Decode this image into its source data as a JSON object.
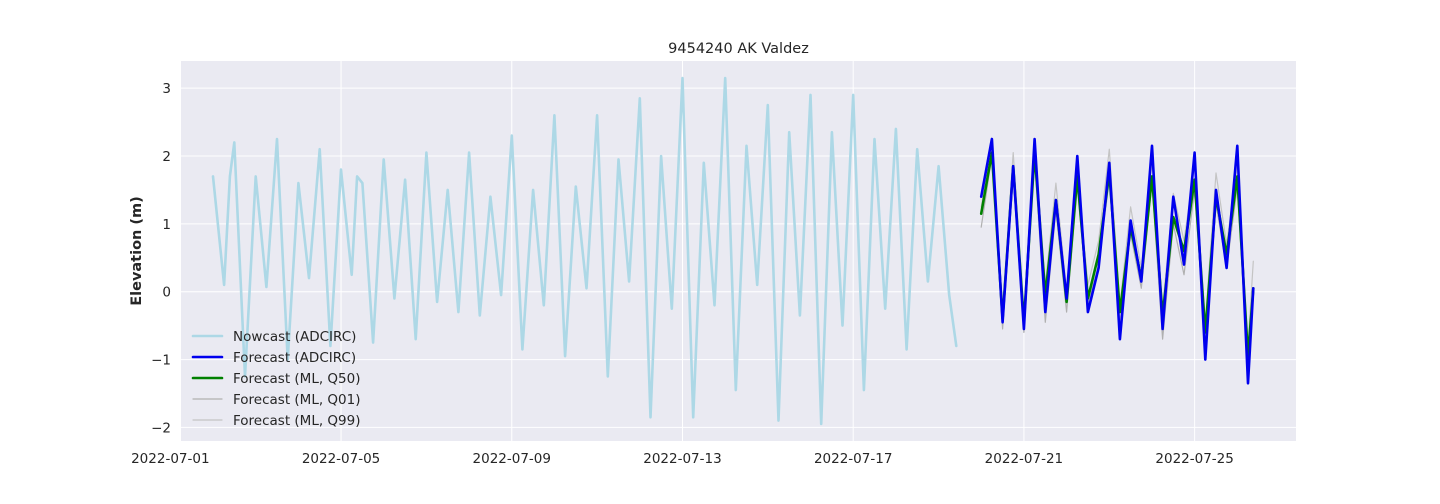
{
  "chart_data": {
    "type": "line",
    "title": "9454240 AK Valdez",
    "xlabel": "",
    "ylabel": "Elevation (m)",
    "x_type": "date",
    "xlim": [
      "2022-07-01T06:00",
      "2022-07-27T09:00"
    ],
    "ylim": [
      -2.2,
      3.4
    ],
    "x_ticks": [
      "2022-07-01",
      "2022-07-05",
      "2022-07-09",
      "2022-07-13",
      "2022-07-17",
      "2022-07-21",
      "2022-07-25"
    ],
    "y_ticks": [
      -2,
      -1,
      0,
      1,
      2,
      3
    ],
    "grid": true,
    "legend_position": "lower-left",
    "series": [
      {
        "name": "Nowcast (ADCIRC)",
        "color": "#add8e6",
        "width": 2.6,
        "points": [
          [
            "2022-07-02T00:00",
            1.7
          ],
          [
            "2022-07-02T06:15",
            0.1
          ],
          [
            "2022-07-02T09:30",
            1.7
          ],
          [
            "2022-07-02T12:00",
            2.2
          ],
          [
            "2022-07-02T18:00",
            -1.25
          ],
          [
            "2022-07-03T00:00",
            1.7
          ],
          [
            "2022-07-03T06:00",
            0.07
          ],
          [
            "2022-07-03T12:00",
            2.25
          ],
          [
            "2022-07-03T18:00",
            -1.0
          ],
          [
            "2022-07-04T00:00",
            1.6
          ],
          [
            "2022-07-04T06:00",
            0.2
          ],
          [
            "2022-07-04T12:00",
            2.1
          ],
          [
            "2022-07-04T18:00",
            -0.8
          ],
          [
            "2022-07-05T00:00",
            1.8
          ],
          [
            "2022-07-05T06:00",
            0.25
          ],
          [
            "2022-07-05T09:00",
            1.7
          ],
          [
            "2022-07-05T12:00",
            1.6
          ],
          [
            "2022-07-05T18:00",
            -0.75
          ],
          [
            "2022-07-06T00:00",
            1.95
          ],
          [
            "2022-07-06T06:00",
            -0.1
          ],
          [
            "2022-07-06T12:00",
            1.65
          ],
          [
            "2022-07-06T18:00",
            -0.7
          ],
          [
            "2022-07-07T00:00",
            2.05
          ],
          [
            "2022-07-07T06:00",
            -0.15
          ],
          [
            "2022-07-07T12:00",
            1.5
          ],
          [
            "2022-07-07T18:00",
            -0.3
          ],
          [
            "2022-07-08T00:00",
            2.05
          ],
          [
            "2022-07-08T06:00",
            -0.35
          ],
          [
            "2022-07-08T12:00",
            1.4
          ],
          [
            "2022-07-08T18:00",
            -0.05
          ],
          [
            "2022-07-09T00:00",
            2.3
          ],
          [
            "2022-07-09T06:00",
            -0.85
          ],
          [
            "2022-07-09T12:00",
            1.5
          ],
          [
            "2022-07-09T18:00",
            -0.2
          ],
          [
            "2022-07-10T00:00",
            2.6
          ],
          [
            "2022-07-10T06:00",
            -0.95
          ],
          [
            "2022-07-10T12:00",
            1.55
          ],
          [
            "2022-07-10T18:00",
            0.05
          ],
          [
            "2022-07-11T00:00",
            2.6
          ],
          [
            "2022-07-11T06:00",
            -1.25
          ],
          [
            "2022-07-11T12:00",
            1.95
          ],
          [
            "2022-07-11T18:00",
            0.15
          ],
          [
            "2022-07-12T00:00",
            2.85
          ],
          [
            "2022-07-12T06:00",
            -1.85
          ],
          [
            "2022-07-12T12:00",
            2.0
          ],
          [
            "2022-07-12T18:00",
            -0.25
          ],
          [
            "2022-07-13T00:00",
            3.15
          ],
          [
            "2022-07-13T06:00",
            -1.85
          ],
          [
            "2022-07-13T12:00",
            1.9
          ],
          [
            "2022-07-13T18:00",
            -0.2
          ],
          [
            "2022-07-14T00:00",
            3.15
          ],
          [
            "2022-07-14T06:00",
            -1.45
          ],
          [
            "2022-07-14T12:00",
            2.15
          ],
          [
            "2022-07-14T18:00",
            0.1
          ],
          [
            "2022-07-15T00:00",
            2.75
          ],
          [
            "2022-07-15T06:00",
            -1.9
          ],
          [
            "2022-07-15T12:00",
            2.35
          ],
          [
            "2022-07-15T18:00",
            -0.35
          ],
          [
            "2022-07-16T00:00",
            2.9
          ],
          [
            "2022-07-16T06:00",
            -1.95
          ],
          [
            "2022-07-16T12:00",
            2.35
          ],
          [
            "2022-07-16T18:00",
            -0.5
          ],
          [
            "2022-07-17T00:00",
            2.9
          ],
          [
            "2022-07-17T06:00",
            -1.45
          ],
          [
            "2022-07-17T12:00",
            2.25
          ],
          [
            "2022-07-17T18:00",
            -0.25
          ],
          [
            "2022-07-18T00:00",
            2.4
          ],
          [
            "2022-07-18T06:00",
            -0.85
          ],
          [
            "2022-07-18T12:00",
            2.1
          ],
          [
            "2022-07-18T18:00",
            0.15
          ],
          [
            "2022-07-19T00:00",
            1.85
          ],
          [
            "2022-07-19T06:00",
            -0.05
          ],
          [
            "2022-07-19T10:00",
            -0.8
          ]
        ]
      },
      {
        "name": "Forecast (ADCIRC)",
        "color": "#0000ee",
        "width": 2.6,
        "points": [
          [
            "2022-07-20T00:00",
            1.4
          ],
          [
            "2022-07-20T06:00",
            2.25
          ],
          [
            "2022-07-20T12:00",
            -0.45
          ],
          [
            "2022-07-20T18:00",
            1.85
          ],
          [
            "2022-07-21T00:00",
            -0.55
          ],
          [
            "2022-07-21T06:00",
            2.25
          ],
          [
            "2022-07-21T12:00",
            -0.3
          ],
          [
            "2022-07-21T18:00",
            1.35
          ],
          [
            "2022-07-22T00:00",
            -0.1
          ],
          [
            "2022-07-22T06:00",
            2.0
          ],
          [
            "2022-07-22T12:00",
            -0.3
          ],
          [
            "2022-07-22T18:00",
            0.35
          ],
          [
            "2022-07-23T00:00",
            1.9
          ],
          [
            "2022-07-23T06:00",
            -0.7
          ],
          [
            "2022-07-23T12:00",
            1.05
          ],
          [
            "2022-07-23T18:00",
            0.15
          ],
          [
            "2022-07-24T00:00",
            2.15
          ],
          [
            "2022-07-24T06:00",
            -0.55
          ],
          [
            "2022-07-24T12:00",
            1.4
          ],
          [
            "2022-07-24T18:00",
            0.4
          ],
          [
            "2022-07-25T00:00",
            2.05
          ],
          [
            "2022-07-25T06:00",
            -1.0
          ],
          [
            "2022-07-25T12:00",
            1.5
          ],
          [
            "2022-07-25T18:00",
            0.35
          ],
          [
            "2022-07-26T00:00",
            2.15
          ],
          [
            "2022-07-26T06:00",
            -1.35
          ],
          [
            "2022-07-26T09:00",
            0.05
          ]
        ]
      },
      {
        "name": "Forecast (ML, Q50)",
        "color": "#008000",
        "width": 2.6,
        "points": [
          [
            "2022-07-20T00:00",
            1.15
          ],
          [
            "2022-07-20T06:00",
            2.05
          ],
          [
            "2022-07-20T12:00",
            -0.4
          ],
          [
            "2022-07-20T18:00",
            1.85
          ],
          [
            "2022-07-21T00:00",
            -0.45
          ],
          [
            "2022-07-21T06:00",
            2.05
          ],
          [
            "2022-07-21T12:00",
            -0.05
          ],
          [
            "2022-07-21T18:00",
            1.35
          ],
          [
            "2022-07-22T00:00",
            -0.15
          ],
          [
            "2022-07-22T06:00",
            1.7
          ],
          [
            "2022-07-22T12:00",
            -0.1
          ],
          [
            "2022-07-22T18:00",
            0.55
          ],
          [
            "2022-07-23T00:00",
            1.75
          ],
          [
            "2022-07-23T06:00",
            -0.3
          ],
          [
            "2022-07-23T12:00",
            0.95
          ],
          [
            "2022-07-23T18:00",
            0.2
          ],
          [
            "2022-07-24T00:00",
            1.7
          ],
          [
            "2022-07-24T06:00",
            -0.35
          ],
          [
            "2022-07-24T12:00",
            1.1
          ],
          [
            "2022-07-24T18:00",
            0.6
          ],
          [
            "2022-07-25T00:00",
            1.65
          ],
          [
            "2022-07-25T06:00",
            -0.6
          ],
          [
            "2022-07-25T12:00",
            1.4
          ],
          [
            "2022-07-25T18:00",
            0.55
          ],
          [
            "2022-07-26T00:00",
            1.7
          ],
          [
            "2022-07-26T06:00",
            -0.95
          ],
          [
            "2022-07-26T09:00",
            0.05
          ]
        ]
      },
      {
        "name": "Forecast (ML, Q01)",
        "color": "#b0b0b0",
        "width": 1.2,
        "points": [
          [
            "2022-07-20T00:00",
            0.95
          ],
          [
            "2022-07-20T06:00",
            2.0
          ],
          [
            "2022-07-20T12:00",
            -0.55
          ],
          [
            "2022-07-20T18:00",
            1.75
          ],
          [
            "2022-07-21T00:00",
            -0.6
          ],
          [
            "2022-07-21T06:00",
            1.95
          ],
          [
            "2022-07-21T12:00",
            -0.45
          ],
          [
            "2022-07-21T18:00",
            1.2
          ],
          [
            "2022-07-22T00:00",
            -0.3
          ],
          [
            "2022-07-22T06:00",
            1.55
          ],
          [
            "2022-07-22T12:00",
            -0.2
          ],
          [
            "2022-07-22T18:00",
            0.4
          ],
          [
            "2022-07-23T00:00",
            1.65
          ],
          [
            "2022-07-23T06:00",
            -0.45
          ],
          [
            "2022-07-23T12:00",
            0.85
          ],
          [
            "2022-07-23T18:00",
            0.05
          ],
          [
            "2022-07-24T00:00",
            1.6
          ],
          [
            "2022-07-24T06:00",
            -0.7
          ],
          [
            "2022-07-24T12:00",
            1.0
          ],
          [
            "2022-07-24T18:00",
            0.25
          ],
          [
            "2022-07-25T00:00",
            1.5
          ],
          [
            "2022-07-25T06:00",
            -0.75
          ],
          [
            "2022-07-25T12:00",
            1.3
          ],
          [
            "2022-07-25T18:00",
            0.35
          ],
          [
            "2022-07-26T00:00",
            1.55
          ],
          [
            "2022-07-26T06:00",
            -1.1
          ],
          [
            "2022-07-26T09:00",
            0.0
          ]
        ]
      },
      {
        "name": "Forecast (ML, Q99)",
        "color": "#c4c4c4",
        "width": 1.2,
        "points": [
          [
            "2022-07-20T00:00",
            1.25
          ],
          [
            "2022-07-20T06:00",
            2.15
          ],
          [
            "2022-07-20T12:00",
            -0.25
          ],
          [
            "2022-07-20T18:00",
            2.05
          ],
          [
            "2022-07-21T00:00",
            -0.3
          ],
          [
            "2022-07-21T06:00",
            2.25
          ],
          [
            "2022-07-21T12:00",
            0.1
          ],
          [
            "2022-07-21T18:00",
            1.6
          ],
          [
            "2022-07-22T00:00",
            0.0
          ],
          [
            "2022-07-22T06:00",
            1.8
          ],
          [
            "2022-07-22T12:00",
            0.1
          ],
          [
            "2022-07-22T18:00",
            0.75
          ],
          [
            "2022-07-23T00:00",
            2.1
          ],
          [
            "2022-07-23T06:00",
            -0.2
          ],
          [
            "2022-07-23T12:00",
            1.25
          ],
          [
            "2022-07-23T18:00",
            0.35
          ],
          [
            "2022-07-24T00:00",
            1.9
          ],
          [
            "2022-07-24T06:00",
            -0.25
          ],
          [
            "2022-07-24T12:00",
            1.45
          ],
          [
            "2022-07-24T18:00",
            0.75
          ],
          [
            "2022-07-25T00:00",
            1.85
          ],
          [
            "2022-07-25T06:00",
            -0.45
          ],
          [
            "2022-07-25T12:00",
            1.75
          ],
          [
            "2022-07-25T18:00",
            0.7
          ],
          [
            "2022-07-26T00:00",
            1.85
          ],
          [
            "2022-07-26T06:00",
            -0.8
          ],
          [
            "2022-07-26T09:00",
            0.45
          ]
        ]
      }
    ]
  }
}
